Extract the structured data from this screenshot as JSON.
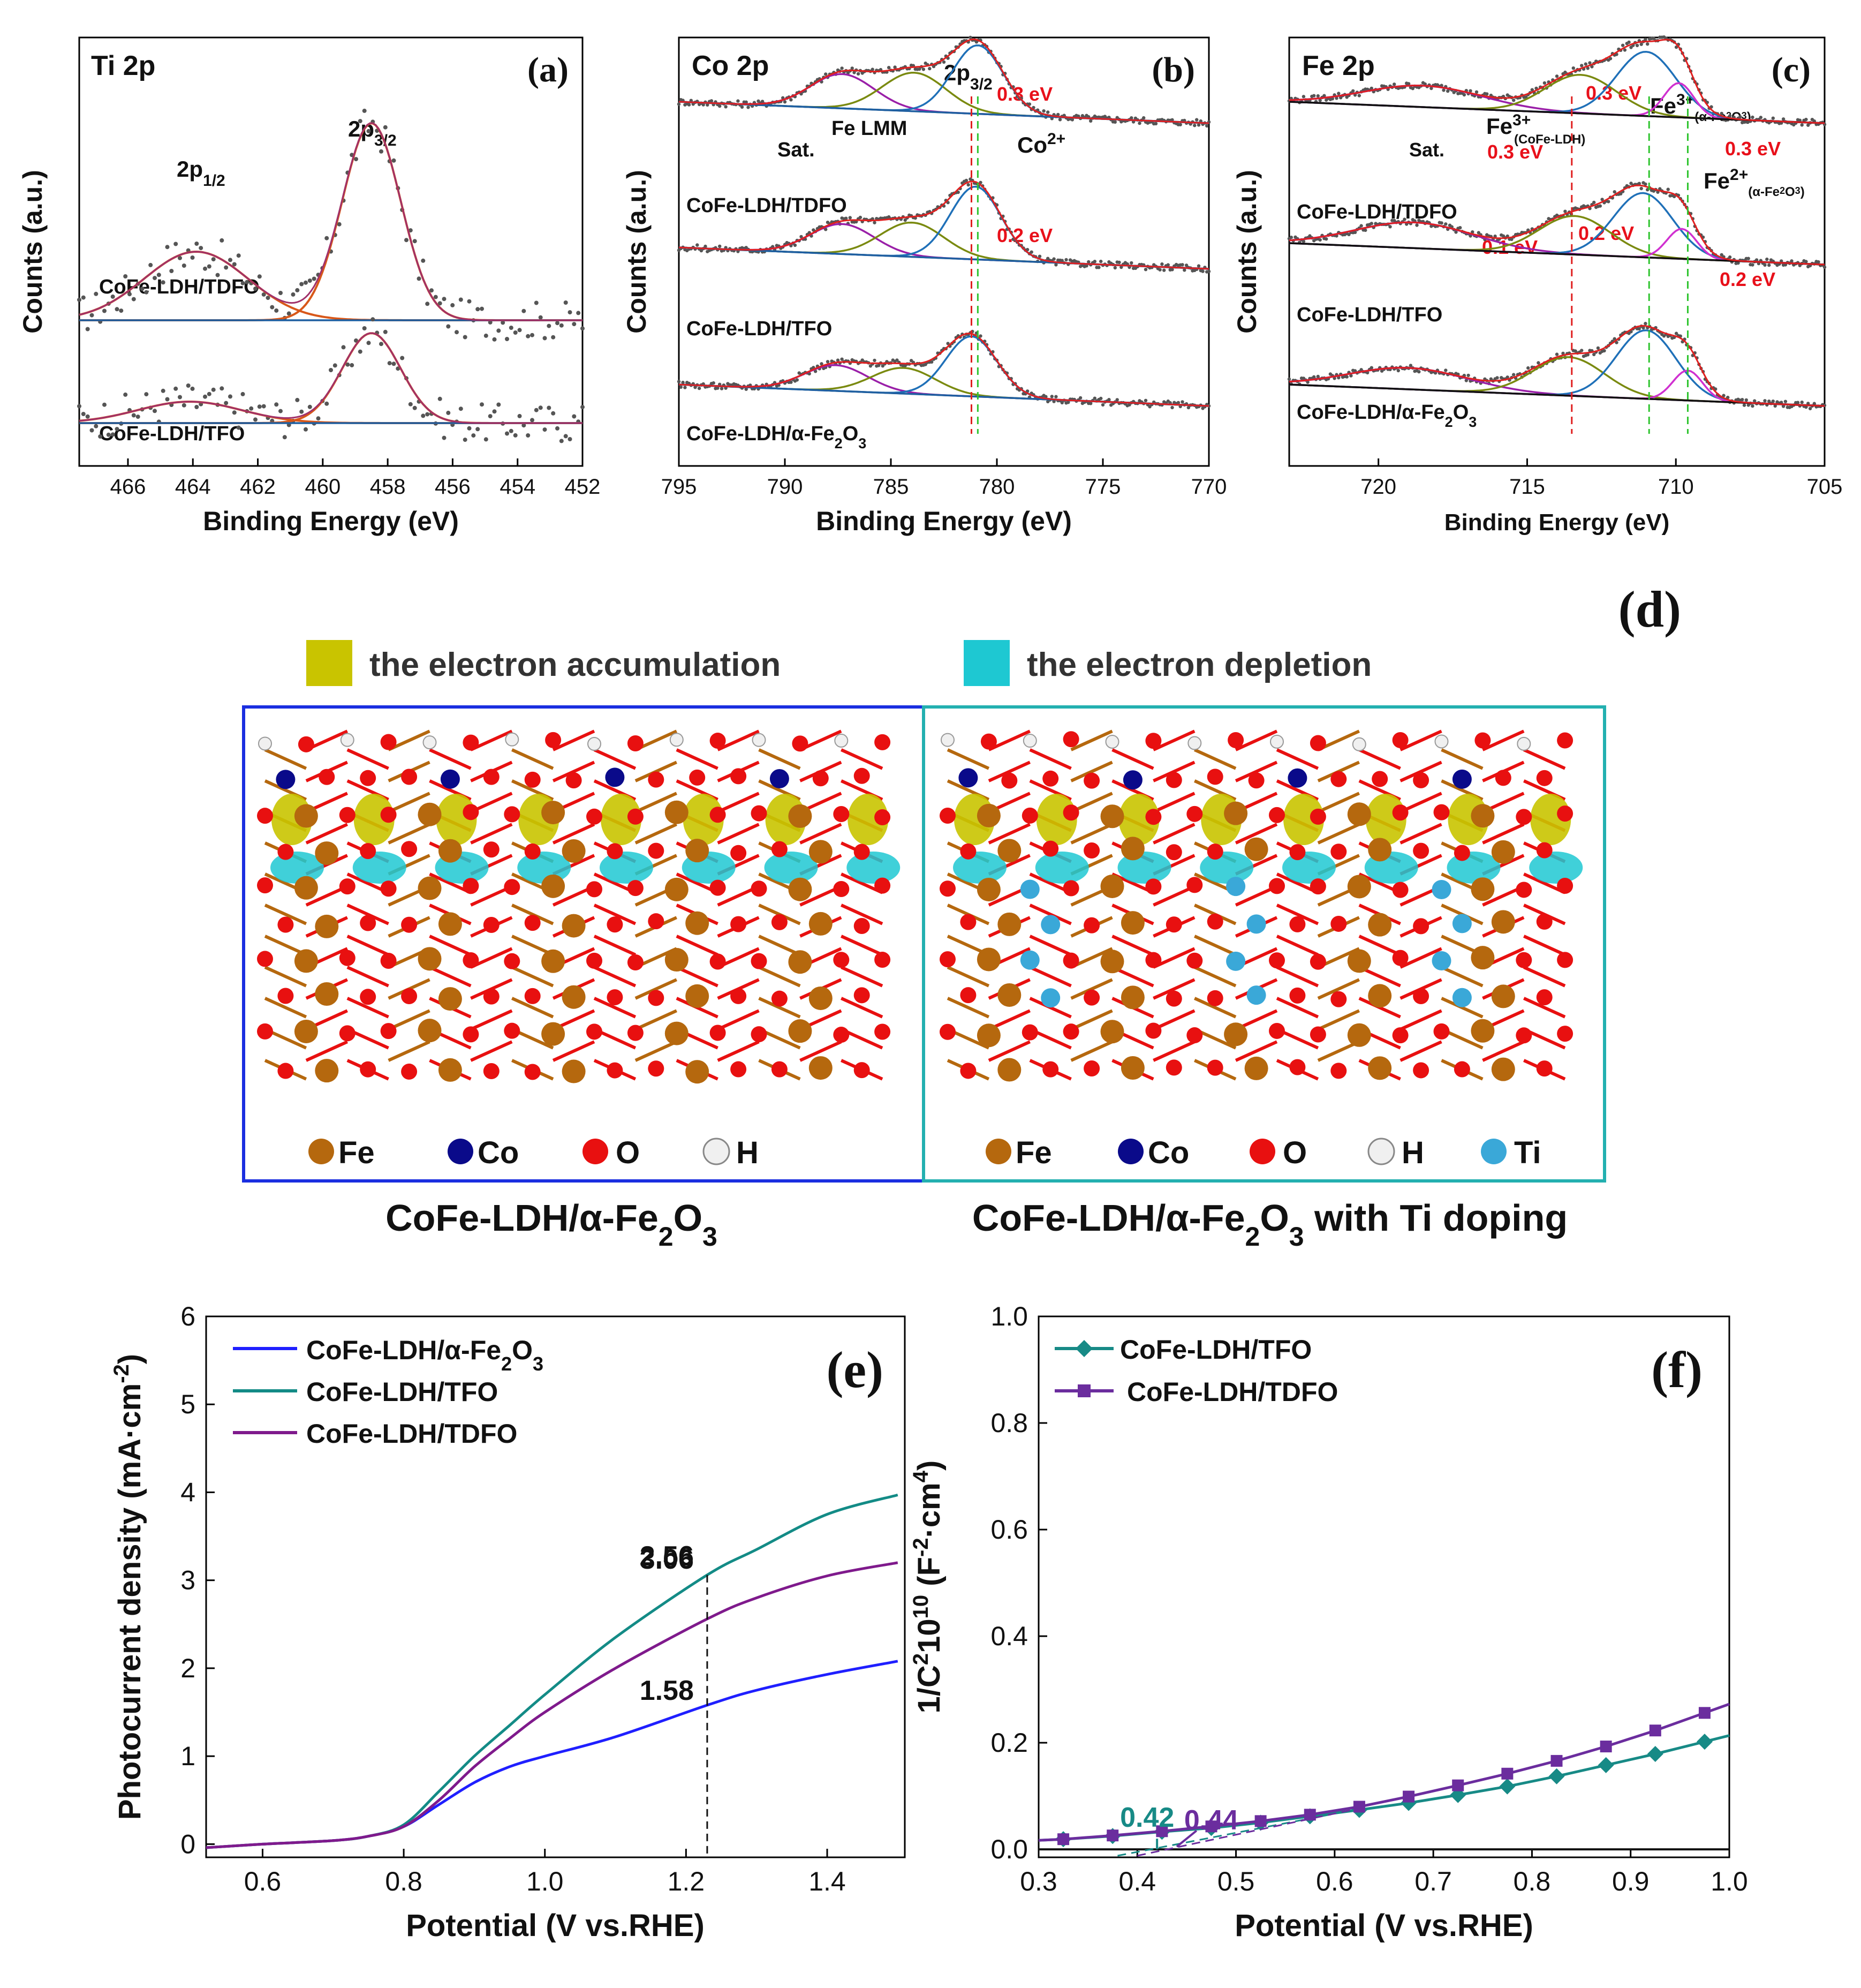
{
  "chart_data": [
    {
      "id": "a",
      "type": "line",
      "panel_label": "(a)",
      "title": "Ti 2p",
      "xlabel": "Binding Energy (eV)",
      "ylabel": "Counts (a.u.)",
      "xlim": [
        467.5,
        452
      ],
      "xticks": [
        466,
        464,
        462,
        460,
        458,
        456,
        454,
        452
      ],
      "peak_labels": [
        {
          "main": "2p",
          "sub": "1/2",
          "x": 464.2
        },
        {
          "main": "2p",
          "sub": "3/2",
          "x": 458.6
        }
      ],
      "series": [
        {
          "name": "CoFe-LDH/TDFO",
          "baseline": 0.34,
          "peaks": [
            {
              "center": 463.9,
              "height": 0.16,
              "width": 1.6
            },
            {
              "center": 458.5,
              "height": 0.46,
              "width": 0.9
            }
          ]
        },
        {
          "name": "CoFe-LDH/TFO",
          "baseline": 0.1,
          "peaks": [
            {
              "center": 464.1,
              "height": 0.05,
              "width": 1.6
            },
            {
              "center": 458.5,
              "height": 0.21,
              "width": 0.9
            }
          ]
        }
      ]
    },
    {
      "id": "b",
      "type": "line",
      "panel_label": "(b)",
      "title": "Co 2p",
      "xlabel": "Binding Energy (eV)",
      "ylabel": "Counts (a.u.)",
      "xlim": [
        795,
        770
      ],
      "xticks": [
        795,
        790,
        785,
        780,
        775,
        770
      ],
      "labels": {
        "sat": "Sat.",
        "fe_lmm": "Fe LMM",
        "peak_main": "2p",
        "peak_sub": "3/2",
        "co2": "Co",
        "co2_sup": "2+"
      },
      "shifts": [
        "0.3 eV",
        "0.2 eV"
      ],
      "ref_lines": [
        781.2,
        780.9
      ],
      "series": [
        {
          "name": "CoFe-LDH/TDFO",
          "baseline": 0.8,
          "peaks": [
            {
              "center": 787.3,
              "height": 0.08,
              "width": 1.5
            },
            {
              "center": 783.9,
              "height": 0.09,
              "width": 1.5
            },
            {
              "center": 780.9,
              "height": 0.16,
              "width": 1.2
            }
          ]
        },
        {
          "name": "CoFe-LDH/TFO",
          "baseline": 0.46,
          "peaks": [
            {
              "center": 787.3,
              "height": 0.07,
              "width": 1.5
            },
            {
              "center": 784.0,
              "height": 0.08,
              "width": 1.5
            },
            {
              "center": 781.0,
              "height": 0.17,
              "width": 1.2
            }
          ]
        },
        {
          "name": "CoFe-LDH/α-Fe2O3",
          "name_main": "CoFe-LDH/α-Fe",
          "name_sub1": "2",
          "name_mid": "O",
          "name_sub2": "3",
          "baseline": 0.14,
          "peaks": [
            {
              "center": 787.6,
              "height": 0.06,
              "width": 1.5
            },
            {
              "center": 784.4,
              "height": 0.06,
              "width": 1.5
            },
            {
              "center": 781.2,
              "height": 0.14,
              "width": 1.2
            }
          ]
        }
      ]
    },
    {
      "id": "c",
      "type": "line",
      "panel_label": "(c)",
      "title": "Fe 2p",
      "xlabel": "Binding Energy (eV)",
      "ylabel": "Counts (a.u.)",
      "xlim": [
        723,
        705
      ],
      "xticks": [
        720,
        715,
        710,
        705
      ],
      "labels": {
        "sat": "Sat.",
        "fe3_ldh": "Fe",
        "fe3_sup": "3+",
        "ldh_sub": "(CoFe-LDH)",
        "fe3_a_sub": "(α-Fe",
        "fe2_sup": "2+"
      },
      "shifts": [
        "0.3 eV",
        "0.3 eV",
        "0.3 eV",
        "0.1 eV",
        "0.2 eV",
        "0.2 eV"
      ],
      "ref_lines": [
        713.5,
        710.9,
        709.6
      ],
      "series": [
        {
          "name": "CoFe-LDH/TDFO",
          "baseline": 0.8,
          "peaks": [
            {
              "center": 718.5,
              "height": 0.05,
              "width": 2.0
            },
            {
              "center": 713.2,
              "height": 0.09,
              "width": 1.2
            },
            {
              "center": 711.0,
              "height": 0.15,
              "width": 1.0
            },
            {
              "center": 709.9,
              "height": 0.08,
              "width": 0.5
            }
          ]
        },
        {
          "name": "CoFe-LDH/TFO",
          "baseline": 0.47,
          "peaks": [
            {
              "center": 718.8,
              "height": 0.06,
              "width": 2.0
            },
            {
              "center": 713.4,
              "height": 0.09,
              "width": 1.2
            },
            {
              "center": 711.1,
              "height": 0.15,
              "width": 1.0
            },
            {
              "center": 709.8,
              "height": 0.07,
              "width": 0.5
            }
          ]
        },
        {
          "name": "CoFe-LDH/α-Fe2O3",
          "baseline": 0.14,
          "peaks": [
            {
              "center": 719.0,
              "height": 0.05,
              "width": 2.0
            },
            {
              "center": 713.6,
              "height": 0.09,
              "width": 1.2
            },
            {
              "center": 711.0,
              "height": 0.16,
              "width": 1.0
            },
            {
              "center": 709.6,
              "height": 0.07,
              "width": 0.5
            }
          ]
        }
      ]
    },
    {
      "id": "e",
      "type": "line",
      "panel_label": "(e)",
      "xlabel": "Potential (V vs.RHE)",
      "ylabel": "Photocurrent density (mA·cm",
      "ylabel_sup": "-2",
      "ylabel_end": ")",
      "xlim": [
        0.52,
        1.51
      ],
      "ylim": [
        -0.15,
        6
      ],
      "xticks": [
        0.6,
        0.8,
        1.0,
        1.2,
        1.4
      ],
      "yticks": [
        0,
        1,
        2,
        3,
        4,
        5,
        6
      ],
      "marker_x": 1.23,
      "annotations": [
        "3.06",
        "2.56",
        "1.58"
      ],
      "legend": [
        "CoFe-LDH/α-Fe2O3",
        "CoFe-LDH/TFO",
        "CoFe-LDH/TDFO"
      ],
      "legend_alpha": {
        "main": "CoFe-LDH/α-Fe",
        "sub1": "2",
        "mid": "O",
        "sub2": "3"
      },
      "series": [
        {
          "name": "CoFe-LDH/α-Fe2O3",
          "color": "#1f1fff",
          "x": [
            0.52,
            0.6,
            0.7,
            0.75,
            0.8,
            0.85,
            0.9,
            0.95,
            1.0,
            1.1,
            1.23,
            1.3,
            1.4,
            1.5
          ],
          "y": [
            -0.04,
            0.0,
            0.04,
            0.09,
            0.2,
            0.45,
            0.7,
            0.88,
            1.0,
            1.22,
            1.58,
            1.75,
            1.93,
            2.08
          ]
        },
        {
          "name": "CoFe-LDH/TFO",
          "color": "#138b86",
          "x": [
            0.52,
            0.6,
            0.7,
            0.75,
            0.8,
            0.85,
            0.9,
            0.95,
            1.0,
            1.1,
            1.23,
            1.3,
            1.4,
            1.5
          ],
          "y": [
            -0.04,
            0.0,
            0.04,
            0.09,
            0.22,
            0.6,
            1.0,
            1.35,
            1.7,
            2.35,
            3.06,
            3.35,
            3.75,
            3.97
          ]
        },
        {
          "name": "CoFe-LDH/TDFO",
          "color": "#7f1a8c",
          "x": [
            0.52,
            0.6,
            0.7,
            0.75,
            0.8,
            0.85,
            0.9,
            0.95,
            1.0,
            1.1,
            1.23,
            1.3,
            1.4,
            1.5
          ],
          "y": [
            -0.04,
            0.0,
            0.04,
            0.09,
            0.2,
            0.5,
            0.88,
            1.2,
            1.5,
            2.0,
            2.56,
            2.8,
            3.05,
            3.2
          ]
        }
      ]
    },
    {
      "id": "f",
      "type": "line",
      "panel_label": "(f)",
      "xlabel": "Potential (V vs.RHE)",
      "ylabel": "1/C²10¹⁰ (F⁻²·cm⁴)",
      "ylabel_parts": {
        "a": "1/C",
        "a_sup": "2",
        "b": "10",
        "b_sup": "10",
        "c": " (F",
        "c_sup": "-2",
        "d": "·cm",
        "d_sup": "4",
        "e": ")"
      },
      "xlim": [
        0.3,
        1.0
      ],
      "ylim": [
        -0.015,
        1.0
      ],
      "xticks": [
        0.3,
        0.4,
        0.5,
        0.6,
        0.7,
        0.8,
        0.9,
        1.0
      ],
      "yticks": [
        0.0,
        0.2,
        0.4,
        0.6,
        0.8,
        1.0
      ],
      "annotations": [
        "0.42",
        "0.44"
      ],
      "legend": [
        "CoFe-LDH/TFO",
        "CoFe-LDH/TDFO"
      ],
      "series": [
        {
          "name": "CoFe-LDH/TFO",
          "color": "#178a86",
          "marker": "diamond",
          "intercept": 0.42,
          "x": [
            0.325,
            0.375,
            0.425,
            0.475,
            0.525,
            0.575,
            0.625,
            0.675,
            0.725,
            0.775,
            0.825,
            0.875,
            0.925,
            0.975
          ],
          "y": [
            0.019,
            0.025,
            0.033,
            0.04,
            0.05,
            0.062,
            0.074,
            0.087,
            0.102,
            0.118,
            0.137,
            0.158,
            0.179,
            0.202
          ]
        },
        {
          "name": "CoFe-LDH/TDFO",
          "color": "#6b2d9e",
          "marker": "square",
          "intercept": 0.44,
          "x": [
            0.325,
            0.375,
            0.425,
            0.475,
            0.525,
            0.575,
            0.625,
            0.675,
            0.725,
            0.775,
            0.825,
            0.875,
            0.925,
            0.975
          ],
          "y": [
            0.019,
            0.026,
            0.034,
            0.043,
            0.053,
            0.065,
            0.08,
            0.099,
            0.12,
            0.142,
            0.166,
            0.193,
            0.223,
            0.256
          ]
        }
      ]
    }
  ],
  "panel_d": {
    "label": "(d)",
    "legend_accumulation": "the electron accumulation",
    "legend_depletion": "the electron depletion",
    "colors": {
      "accumulation": "#c9c400",
      "depletion": "#1ec8d2",
      "fe": "#b5680e",
      "co": "#0a0a8a",
      "o": "#e81010",
      "h": "#f0f0f0",
      "ti": "#3aa8d8"
    },
    "left": {
      "caption_main": "CoFe-LDH/α-Fe",
      "caption_sub1": "2",
      "caption_mid": "O",
      "caption_sub2": "3",
      "caption_end": "",
      "atoms": [
        "Fe",
        "Co",
        "O",
        "H"
      ]
    },
    "right": {
      "caption_main": "CoFe-LDH/α-Fe",
      "caption_sub1": "2",
      "caption_mid": "O",
      "caption_sub2": "3",
      "caption_end": " with Ti doping",
      "atoms": [
        "Fe",
        "Co",
        "O",
        "H",
        "Ti"
      ]
    }
  }
}
